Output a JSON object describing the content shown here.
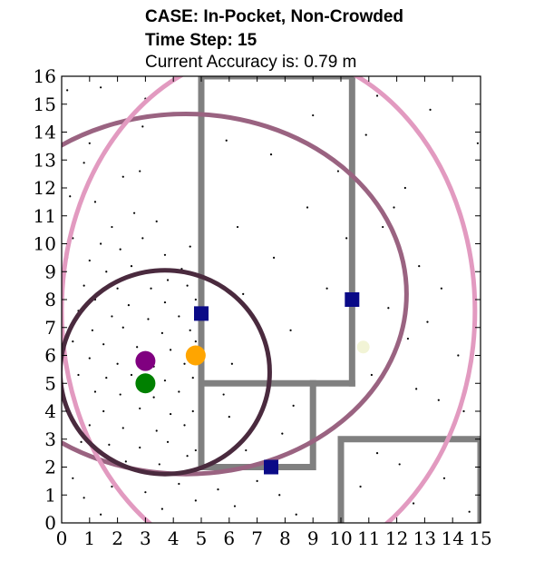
{
  "title_lines": [
    "CASE: In-Pocket, Non-Crowded",
    "Time Step: 15",
    "Current Accuracy is: 0.79 m"
  ],
  "chart_data": {
    "type": "scatter",
    "title": "CASE: In-Pocket, Non-Crowded",
    "subtitle": "Time Step: 15 | Current Accuracy is: 0.79 m",
    "xlabel": "",
    "ylabel": "",
    "xlim": [
      0,
      15
    ],
    "ylim": [
      0,
      16
    ],
    "xticks": [
      0,
      1,
      2,
      3,
      4,
      5,
      6,
      7,
      8,
      9,
      10,
      11,
      12,
      13,
      14,
      15
    ],
    "yticks": [
      0,
      1,
      2,
      3,
      4,
      5,
      6,
      7,
      8,
      9,
      10,
      11,
      12,
      13,
      14,
      15,
      16
    ],
    "grid": false,
    "legend": "none",
    "walls": [
      {
        "points": [
          [
            5,
            2
          ],
          [
            5,
            16
          ]
        ]
      },
      {
        "points": [
          [
            5,
            16
          ],
          [
            10.4,
            16
          ]
        ]
      },
      {
        "points": [
          [
            10.4,
            16
          ],
          [
            10.4,
            5
          ]
        ]
      },
      {
        "points": [
          [
            10.4,
            5
          ],
          [
            5,
            5
          ]
        ]
      },
      {
        "points": [
          [
            5,
            2
          ],
          [
            9,
            2
          ],
          [
            9,
            5
          ]
        ]
      },
      {
        "points": [
          [
            10,
            0
          ],
          [
            10,
            3
          ],
          [
            15,
            3
          ]
        ]
      },
      {
        "points": [
          [
            15,
            3
          ],
          [
            15,
            0
          ]
        ]
      }
    ],
    "wall_color": "#808080",
    "ellipses": [
      {
        "cx": 4.45,
        "cy": 8.2,
        "rx": 7.9,
        "ry": 6.45,
        "color": "#9a6381"
      },
      {
        "cx": 7.4,
        "cy": 7.6,
        "rx": 7.4,
        "ry": 9.3,
        "color": "#e29ac0"
      },
      {
        "cx": 3.7,
        "cy": 5.4,
        "rx": 3.75,
        "ry": 3.65,
        "color": "#4a2a3e"
      }
    ],
    "beacons": [
      [
        5.0,
        7.5
      ],
      [
        10.4,
        8.0
      ],
      [
        7.5,
        2.0
      ]
    ],
    "beacon_color": "#0a0a87",
    "markers": [
      {
        "x": 3.0,
        "y": 5.8,
        "color": "#800080"
      },
      {
        "x": 3.0,
        "y": 5.0,
        "color": "#008000"
      },
      {
        "x": 4.8,
        "y": 6.0,
        "color": "#ffa500"
      }
    ],
    "faint_marker": {
      "x": 10.8,
      "y": 6.3,
      "color": "#f2f4d6"
    },
    "particles": [
      [
        0.2,
        15.5
      ],
      [
        1.4,
        15.6
      ],
      [
        3.0,
        15.2
      ],
      [
        1.0,
        13.6
      ],
      [
        2.9,
        14.2
      ],
      [
        0.8,
        12.9
      ],
      [
        2.2,
        12.4
      ],
      [
        2.8,
        12.6
      ],
      [
        0.3,
        11.7
      ],
      [
        1.2,
        11.5
      ],
      [
        2.6,
        11.1
      ],
      [
        0.5,
        10.9
      ],
      [
        1.8,
        10.6
      ],
      [
        3.4,
        10.8
      ],
      [
        0.4,
        10.2
      ],
      [
        1.4,
        10.0
      ],
      [
        2.9,
        10.2
      ],
      [
        0.2,
        9.5
      ],
      [
        1.0,
        9.4
      ],
      [
        2.1,
        9.8
      ],
      [
        3.7,
        9.6
      ],
      [
        4.6,
        9.9
      ],
      [
        1.6,
        9.0
      ],
      [
        2.5,
        9.2
      ],
      [
        3.8,
        8.7
      ],
      [
        4.3,
        9.1
      ],
      [
        0.8,
        8.5
      ],
      [
        2.0,
        8.4
      ],
      [
        3.2,
        8.4
      ],
      [
        4.5,
        8.5
      ],
      [
        1.2,
        8.0
      ],
      [
        2.4,
        7.8
      ],
      [
        3.7,
        7.9
      ],
      [
        4.8,
        8.0
      ],
      [
        0.6,
        7.6
      ],
      [
        1.8,
        7.4
      ],
      [
        3.1,
        7.3
      ],
      [
        4.2,
        7.4
      ],
      [
        1.1,
        6.9
      ],
      [
        2.2,
        7.0
      ],
      [
        3.6,
        6.8
      ],
      [
        4.6,
        6.9
      ],
      [
        0.4,
        6.5
      ],
      [
        1.5,
        6.4
      ],
      [
        2.7,
        6.3
      ],
      [
        3.9,
        6.2
      ],
      [
        4.8,
        6.5
      ],
      [
        1.0,
        5.9
      ],
      [
        2.0,
        5.7
      ],
      [
        3.3,
        5.6
      ],
      [
        4.4,
        5.7
      ],
      [
        0.6,
        5.3
      ],
      [
        1.6,
        5.2
      ],
      [
        2.5,
        5.3
      ],
      [
        3.7,
        5.1
      ],
      [
        4.7,
        5.2
      ],
      [
        1.2,
        4.7
      ],
      [
        2.1,
        4.6
      ],
      [
        3.3,
        4.5
      ],
      [
        4.2,
        4.7
      ],
      [
        0.5,
        4.2
      ],
      [
        1.5,
        4.0
      ],
      [
        2.8,
        4.1
      ],
      [
        3.9,
        3.9
      ],
      [
        4.7,
        4.0
      ],
      [
        1.0,
        3.5
      ],
      [
        2.2,
        3.4
      ],
      [
        3.4,
        3.3
      ],
      [
        4.4,
        3.5
      ],
      [
        0.7,
        2.9
      ],
      [
        1.7,
        2.8
      ],
      [
        2.8,
        2.7
      ],
      [
        3.8,
        2.9
      ],
      [
        4.8,
        2.6
      ],
      [
        1.3,
        2.3
      ],
      [
        2.3,
        2.2
      ],
      [
        3.5,
        2.1
      ],
      [
        4.5,
        2.4
      ],
      [
        0.4,
        1.6
      ],
      [
        1.8,
        1.3
      ],
      [
        3.0,
        1.1
      ],
      [
        4.2,
        1.4
      ],
      [
        0.8,
        0.9
      ],
      [
        2.4,
        0.8
      ],
      [
        3.6,
        0.5
      ],
      [
        4.8,
        0.8
      ],
      [
        1.4,
        0.3
      ],
      [
        5.6,
        1.2
      ],
      [
        6.2,
        0.6
      ],
      [
        7.0,
        1.5
      ],
      [
        7.8,
        1.0
      ],
      [
        6.6,
        2.6
      ],
      [
        7.9,
        3.2
      ],
      [
        6.0,
        3.8
      ],
      [
        8.3,
        4.2
      ],
      [
        5.8,
        4.6
      ],
      [
        7.4,
        4.8
      ],
      [
        6.1,
        5.7
      ],
      [
        7.2,
        6.6
      ],
      [
        6.5,
        8.2
      ],
      [
        8.2,
        6.9
      ],
      [
        9.5,
        8.4
      ],
      [
        7.6,
        9.5
      ],
      [
        6.3,
        10.6
      ],
      [
        8.8,
        11.3
      ],
      [
        9.9,
        12.6
      ],
      [
        5.9,
        13.7
      ],
      [
        7.5,
        13.2
      ],
      [
        9.0,
        14.6
      ],
      [
        10.2,
        10.2
      ],
      [
        11.5,
        10.6
      ],
      [
        11.9,
        11.3
      ],
      [
        12.3,
        12.0
      ],
      [
        12.8,
        9.2
      ],
      [
        13.6,
        8.4
      ],
      [
        11.7,
        7.7
      ],
      [
        13.1,
        7.2
      ],
      [
        12.4,
        6.6
      ],
      [
        14.2,
        6.0
      ],
      [
        11.1,
        5.3
      ],
      [
        12.7,
        4.8
      ],
      [
        13.5,
        4.4
      ],
      [
        14.4,
        4.0
      ],
      [
        11.3,
        2.5
      ],
      [
        12.1,
        2.1
      ],
      [
        13.7,
        1.6
      ],
      [
        12.6,
        0.7
      ],
      [
        14.6,
        0.4
      ],
      [
        10.7,
        1.3
      ],
      [
        8.4,
        0.3
      ],
      [
        11.3,
        15.3
      ],
      [
        14.9,
        13.6
      ],
      [
        13.2,
        14.8
      ],
      [
        10.9,
        13.9
      ]
    ]
  }
}
